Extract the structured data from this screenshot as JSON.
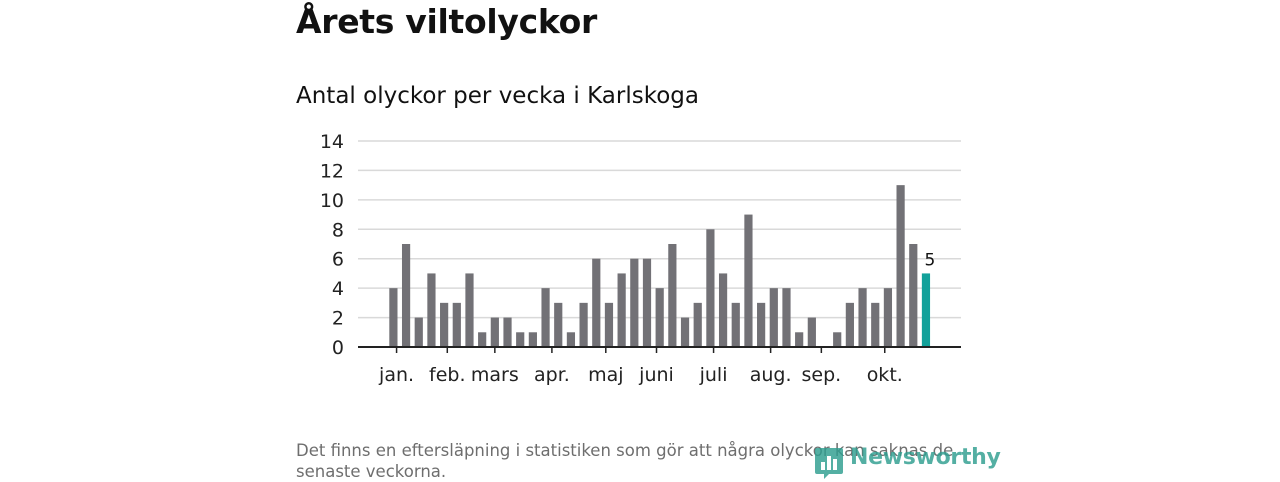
{
  "title": "Årets viltolyckor",
  "subtitle": "Antal olyckor per vecka i Karlskoga",
  "note": "Det finns en eftersläpning i statistiken som gör att några olyckor kan saknas de senaste veckorna.",
  "logo": {
    "text": "Newsworthy",
    "icon": "bar-chart-logo-icon"
  },
  "colors": {
    "bar": "#727176",
    "highlight": "#12a19a",
    "grid": "#d9d9d9",
    "axis": "#222222",
    "logo": "#2f9e90"
  },
  "chart_data": {
    "type": "bar",
    "title": "Antal olyckor per vecka i Karlskoga",
    "xlabel": "",
    "ylabel": "",
    "ylim": [
      0,
      14
    ],
    "yticks": [
      0,
      2,
      4,
      6,
      8,
      10,
      12,
      14
    ],
    "grid": true,
    "x": [
      1,
      2,
      3,
      4,
      5,
      6,
      7,
      8,
      9,
      10,
      11,
      12,
      13,
      14,
      15,
      16,
      17,
      18,
      19,
      20,
      21,
      22,
      23,
      24,
      25,
      26,
      27,
      28,
      29,
      30,
      31,
      32,
      33,
      34,
      35,
      36,
      37,
      38,
      39,
      40,
      41,
      42,
      43
    ],
    "values": [
      4,
      7,
      2,
      5,
      3,
      3,
      5,
      1,
      2,
      2,
      1,
      1,
      4,
      3,
      1,
      3,
      6,
      3,
      5,
      6,
      6,
      4,
      7,
      2,
      3,
      8,
      5,
      3,
      9,
      3,
      4,
      4,
      1,
      2,
      0,
      1,
      3,
      4,
      3,
      4,
      11,
      7,
      5
    ],
    "highlight_last": true,
    "last_value_label": "5",
    "month_labels": [
      {
        "label": "jan.",
        "week": 1.25
      },
      {
        "label": "feb.",
        "week": 5.25
      },
      {
        "label": "mars",
        "week": 9.0
      },
      {
        "label": "apr.",
        "week": 13.5
      },
      {
        "label": "maj",
        "week": 17.75
      },
      {
        "label": "juni",
        "week": 21.75
      },
      {
        "label": "juli",
        "week": 26.25
      },
      {
        "label": "aug.",
        "week": 30.75
      },
      {
        "label": "sep.",
        "week": 34.75
      },
      {
        "label": "okt.",
        "week": 39.75
      }
    ]
  }
}
